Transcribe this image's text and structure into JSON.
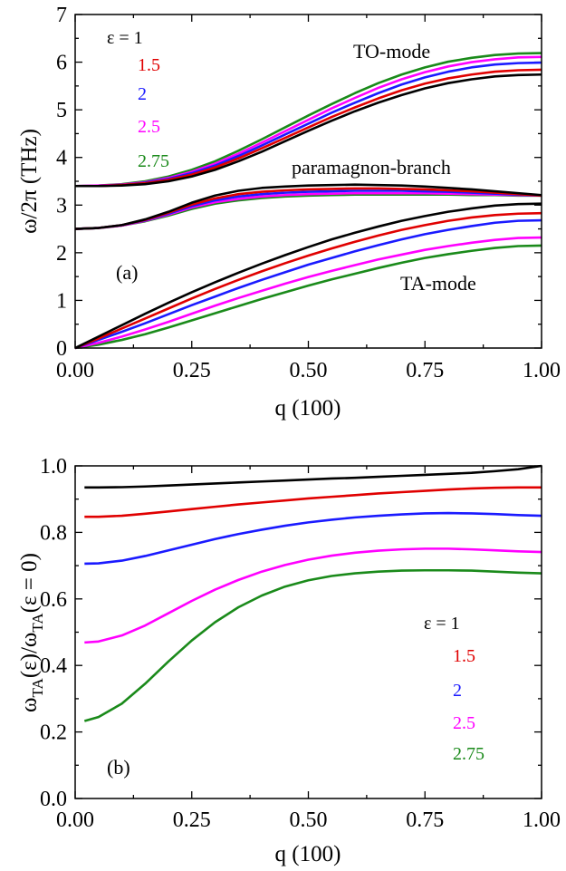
{
  "chart_data": [
    {
      "type": "line",
      "panel_label": "(a)",
      "xlabel": "q (100)",
      "ylabel": "ω/2π (THz)",
      "xlim": [
        0,
        1
      ],
      "ylim": [
        0,
        7
      ],
      "xticks": [
        "0.00",
        "0.25",
        "0.50",
        "0.75",
        "1.00"
      ],
      "yticks": [
        "0",
        "1",
        "2",
        "3",
        "4",
        "5",
        "6",
        "7"
      ],
      "grid": false,
      "legend_position": "top-left",
      "legend": [
        {
          "label": "ε = 1",
          "color": "#000000"
        },
        {
          "label": "1.5",
          "color": "#e00000"
        },
        {
          "label": "2",
          "color": "#1a1aff"
        },
        {
          "label": "2.5",
          "color": "#ff00ff"
        },
        {
          "label": "2.75",
          "color": "#1a8a1a"
        }
      ],
      "annotations": [
        "TO-mode",
        "paramagnon-branch",
        "TA-mode"
      ],
      "x": [
        0.0,
        0.05,
        0.1,
        0.15,
        0.2,
        0.25,
        0.3,
        0.35,
        0.4,
        0.45,
        0.5,
        0.55,
        0.6,
        0.65,
        0.7,
        0.75,
        0.8,
        0.85,
        0.9,
        0.95,
        1.0
      ],
      "series": [
        {
          "group": "TO-mode",
          "legend_ref": "ε = 1",
          "color": "#000000",
          "values": [
            3.4,
            3.4,
            3.41,
            3.44,
            3.5,
            3.6,
            3.74,
            3.92,
            4.12,
            4.34,
            4.56,
            4.77,
            4.97,
            5.15,
            5.31,
            5.45,
            5.56,
            5.64,
            5.7,
            5.73,
            5.74
          ]
        },
        {
          "group": "TO-mode",
          "legend_ref": "1.5",
          "color": "#e00000",
          "values": [
            3.4,
            3.4,
            3.42,
            3.46,
            3.53,
            3.64,
            3.79,
            3.98,
            4.19,
            4.41,
            4.63,
            4.85,
            5.05,
            5.24,
            5.41,
            5.55,
            5.66,
            5.74,
            5.8,
            5.83,
            5.84
          ]
        },
        {
          "group": "TO-mode",
          "legend_ref": "2",
          "color": "#1a1aff",
          "values": [
            3.4,
            3.4,
            3.42,
            3.47,
            3.55,
            3.67,
            3.83,
            4.03,
            4.25,
            4.48,
            4.71,
            4.94,
            5.15,
            5.35,
            5.53,
            5.68,
            5.8,
            5.89,
            5.95,
            5.98,
            5.99
          ]
        },
        {
          "group": "TO-mode",
          "legend_ref": "2.5",
          "color": "#ff00ff",
          "values": [
            3.4,
            3.41,
            3.43,
            3.48,
            3.57,
            3.7,
            3.87,
            4.08,
            4.31,
            4.55,
            4.79,
            5.03,
            5.25,
            5.46,
            5.64,
            5.79,
            5.91,
            6.0,
            6.06,
            6.1,
            6.11
          ]
        },
        {
          "group": "TO-mode",
          "legend_ref": "2.75",
          "color": "#1a8a1a",
          "values": [
            3.4,
            3.41,
            3.44,
            3.5,
            3.6,
            3.74,
            3.92,
            4.14,
            4.38,
            4.63,
            4.88,
            5.12,
            5.35,
            5.56,
            5.74,
            5.89,
            6.01,
            6.09,
            6.15,
            6.18,
            6.19
          ]
        },
        {
          "group": "paramagnon-branch",
          "legend_ref": "ε = 1",
          "color": "#000000",
          "values": [
            2.5,
            2.52,
            2.58,
            2.7,
            2.86,
            3.05,
            3.2,
            3.3,
            3.36,
            3.39,
            3.41,
            3.42,
            3.43,
            3.42,
            3.41,
            3.39,
            3.36,
            3.33,
            3.29,
            3.25,
            3.21
          ]
        },
        {
          "group": "paramagnon-branch",
          "legend_ref": "1.5",
          "color": "#e00000",
          "values": [
            2.5,
            2.52,
            2.58,
            2.69,
            2.84,
            3.01,
            3.14,
            3.23,
            3.28,
            3.31,
            3.33,
            3.34,
            3.35,
            3.35,
            3.34,
            3.33,
            3.31,
            3.29,
            3.26,
            3.23,
            3.2
          ]
        },
        {
          "group": "paramagnon-branch",
          "legend_ref": "2",
          "color": "#1a1aff",
          "values": [
            2.5,
            2.52,
            2.58,
            2.68,
            2.82,
            2.98,
            3.1,
            3.18,
            3.23,
            3.26,
            3.28,
            3.29,
            3.3,
            3.3,
            3.3,
            3.29,
            3.28,
            3.26,
            3.24,
            3.22,
            3.2
          ]
        },
        {
          "group": "paramagnon-branch",
          "legend_ref": "2.5",
          "color": "#ff00ff",
          "values": [
            2.5,
            2.52,
            2.57,
            2.67,
            2.8,
            2.95,
            3.06,
            3.13,
            3.18,
            3.21,
            3.23,
            3.24,
            3.25,
            3.25,
            3.25,
            3.25,
            3.24,
            3.23,
            3.22,
            3.21,
            3.2
          ]
        },
        {
          "group": "paramagnon-branch",
          "legend_ref": "2.75",
          "color": "#1a8a1a",
          "values": [
            2.5,
            2.52,
            2.57,
            2.66,
            2.78,
            2.92,
            3.03,
            3.1,
            3.15,
            3.18,
            3.2,
            3.21,
            3.22,
            3.22,
            3.22,
            3.22,
            3.22,
            3.21,
            3.21,
            3.2,
            3.2
          ]
        },
        {
          "group": "TA-mode",
          "legend_ref": "ε = 1",
          "color": "#000000",
          "values": [
            0.0,
            0.24,
            0.48,
            0.72,
            0.95,
            1.17,
            1.38,
            1.58,
            1.77,
            1.95,
            2.12,
            2.28,
            2.42,
            2.55,
            2.67,
            2.77,
            2.86,
            2.93,
            2.99,
            3.02,
            3.03
          ]
        },
        {
          "group": "TA-mode",
          "legend_ref": "1.5",
          "color": "#e00000",
          "values": [
            0.0,
            0.2,
            0.41,
            0.62,
            0.83,
            1.04,
            1.24,
            1.43,
            1.61,
            1.78,
            1.94,
            2.09,
            2.23,
            2.36,
            2.48,
            2.58,
            2.67,
            2.74,
            2.79,
            2.82,
            2.83
          ]
        },
        {
          "group": "TA-mode",
          "legend_ref": "2",
          "color": "#1a1aff",
          "values": [
            0.0,
            0.17,
            0.34,
            0.52,
            0.71,
            0.9,
            1.08,
            1.26,
            1.43,
            1.59,
            1.75,
            1.89,
            2.03,
            2.16,
            2.28,
            2.39,
            2.48,
            2.56,
            2.63,
            2.67,
            2.68
          ]
        },
        {
          "group": "TA-mode",
          "legend_ref": "2.5",
          "color": "#ff00ff",
          "values": [
            0.0,
            0.11,
            0.24,
            0.39,
            0.55,
            0.72,
            0.89,
            1.05,
            1.2,
            1.35,
            1.49,
            1.62,
            1.74,
            1.86,
            1.96,
            2.06,
            2.14,
            2.21,
            2.27,
            2.31,
            2.32
          ]
        },
        {
          "group": "TA-mode",
          "legend_ref": "2.75",
          "color": "#1a8a1a",
          "values": [
            0.0,
            0.07,
            0.17,
            0.29,
            0.43,
            0.58,
            0.73,
            0.88,
            1.03,
            1.17,
            1.31,
            1.44,
            1.56,
            1.68,
            1.79,
            1.89,
            1.97,
            2.04,
            2.1,
            2.14,
            2.15
          ]
        }
      ]
    },
    {
      "type": "line",
      "panel_label": "(b)",
      "xlabel": "q (100)",
      "ylabel_parts": [
        "ω",
        "TA",
        "(ε)/ω",
        "TA",
        "(ε = 0)"
      ],
      "xlim": [
        0,
        1
      ],
      "ylim": [
        0,
        1
      ],
      "xticks": [
        "0.00",
        "0.25",
        "0.50",
        "0.75",
        "1.00"
      ],
      "yticks": [
        "0.0",
        "0.2",
        "0.4",
        "0.6",
        "0.8",
        "1.0"
      ],
      "grid": false,
      "legend_position": "bottom-right",
      "legend": [
        {
          "label": "ε = 1",
          "color": "#000000"
        },
        {
          "label": "1.5",
          "color": "#e00000"
        },
        {
          "label": "2",
          "color": "#1a1aff"
        },
        {
          "label": "2.5",
          "color": "#ff00ff"
        },
        {
          "label": "2.75",
          "color": "#1a8a1a"
        }
      ],
      "x": [
        0.02,
        0.05,
        0.1,
        0.15,
        0.2,
        0.25,
        0.3,
        0.35,
        0.4,
        0.45,
        0.5,
        0.55,
        0.6,
        0.65,
        0.7,
        0.75,
        0.8,
        0.85,
        0.9,
        0.95,
        1.0
      ],
      "series": [
        {
          "legend_ref": "ε = 1",
          "color": "#000000",
          "values": [
            0.935,
            0.935,
            0.936,
            0.938,
            0.941,
            0.944,
            0.947,
            0.95,
            0.953,
            0.956,
            0.959,
            0.962,
            0.964,
            0.967,
            0.97,
            0.973,
            0.976,
            0.979,
            0.984,
            0.99,
            1.0
          ]
        },
        {
          "legend_ref": "1.5",
          "color": "#e00000",
          "values": [
            0.847,
            0.847,
            0.85,
            0.856,
            0.863,
            0.87,
            0.877,
            0.884,
            0.89,
            0.896,
            0.902,
            0.907,
            0.912,
            0.917,
            0.921,
            0.925,
            0.929,
            0.932,
            0.934,
            0.935,
            0.935
          ]
        },
        {
          "legend_ref": "2",
          "color": "#1a1aff",
          "values": [
            0.706,
            0.707,
            0.715,
            0.729,
            0.746,
            0.763,
            0.78,
            0.795,
            0.808,
            0.82,
            0.83,
            0.838,
            0.845,
            0.85,
            0.854,
            0.857,
            0.858,
            0.857,
            0.855,
            0.852,
            0.85
          ]
        },
        {
          "legend_ref": "2.5",
          "color": "#ff00ff",
          "values": [
            0.469,
            0.472,
            0.49,
            0.52,
            0.557,
            0.594,
            0.628,
            0.657,
            0.682,
            0.702,
            0.718,
            0.73,
            0.739,
            0.745,
            0.749,
            0.751,
            0.751,
            0.749,
            0.746,
            0.743,
            0.741
          ]
        },
        {
          "legend_ref": "2.75",
          "color": "#1a8a1a",
          "values": [
            0.233,
            0.245,
            0.285,
            0.345,
            0.412,
            0.475,
            0.53,
            0.575,
            0.61,
            0.637,
            0.656,
            0.669,
            0.677,
            0.682,
            0.685,
            0.686,
            0.686,
            0.685,
            0.682,
            0.679,
            0.677
          ]
        }
      ]
    }
  ]
}
